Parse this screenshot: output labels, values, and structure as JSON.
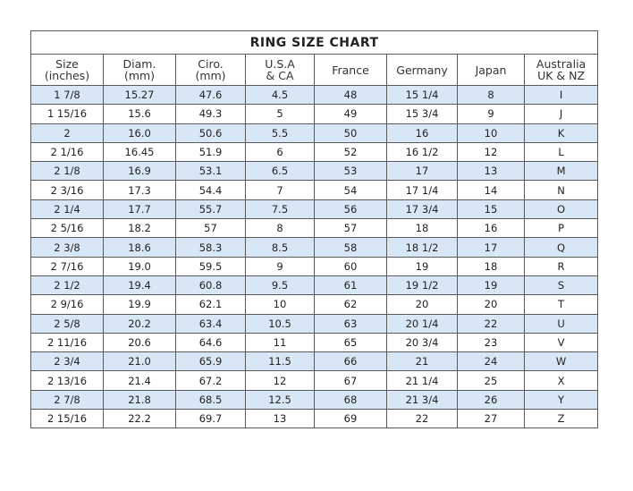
{
  "title": "RING SIZE CHART",
  "columns": [
    [
      "Size",
      "(inches)"
    ],
    [
      "Diam.",
      "(mm)"
    ],
    [
      "Ciro.",
      "(mm)"
    ],
    [
      "U.S.A",
      "& CA"
    ],
    [
      "France",
      ""
    ],
    [
      "Germany",
      ""
    ],
    [
      "Japan",
      ""
    ],
    [
      "Australia",
      "UK & NZ"
    ]
  ],
  "row_color": "#d8e7f6",
  "rows": [
    [
      "1 7/8",
      "15.27",
      "47.6",
      "4.5",
      "48",
      "15 1/4",
      "8",
      "I"
    ],
    [
      "1 15/16",
      "15.6",
      "49.3",
      "5",
      "49",
      "15 3/4",
      "9",
      "J"
    ],
    [
      "2",
      "16.0",
      "50.6",
      "5.5",
      "50",
      "16",
      "10",
      "K"
    ],
    [
      "2 1/16",
      "16.45",
      "51.9",
      "6",
      "52",
      "16 1/2",
      "12",
      "L"
    ],
    [
      "2 1/8",
      "16.9",
      "53.1",
      "6.5",
      "53",
      "17",
      "13",
      "M"
    ],
    [
      "2 3/16",
      "17.3",
      "54.4",
      "7",
      "54",
      "17 1/4",
      "14",
      "N"
    ],
    [
      "2 1/4",
      "17.7",
      "55.7",
      "7.5",
      "56",
      "17 3/4",
      "15",
      "O"
    ],
    [
      "2 5/16",
      "18.2",
      "57",
      "8",
      "57",
      "18",
      "16",
      "P"
    ],
    [
      "2 3/8",
      "18.6",
      "58.3",
      "8.5",
      "58",
      "18 1/2",
      "17",
      "Q"
    ],
    [
      "2 7/16",
      "19.0",
      "59.5",
      "9",
      "60",
      "19",
      "18",
      "R"
    ],
    [
      "2 1/2",
      "19.4",
      "60.8",
      "9.5",
      "61",
      "19 1/2",
      "19",
      "S"
    ],
    [
      "2 9/16",
      "19.9",
      "62.1",
      "10",
      "62",
      "20",
      "20",
      "T"
    ],
    [
      "2 5/8",
      "20.2",
      "63.4",
      "10.5",
      "63",
      "20 1/4",
      "22",
      "U"
    ],
    [
      "2 11/16",
      "20.6",
      "64.6",
      "11",
      "65",
      "20 3/4",
      "23",
      "V"
    ],
    [
      "2 3/4",
      "21.0",
      "65.9",
      "11.5",
      "66",
      "21",
      "24",
      "W"
    ],
    [
      "2 13/16",
      "21.4",
      "67.2",
      "12",
      "67",
      "21 1/4",
      "25",
      "X"
    ],
    [
      "2 7/8",
      "21.8",
      "68.5",
      "12.5",
      "68",
      "21 3/4",
      "26",
      "Y"
    ],
    [
      "2 15/16",
      "22.2",
      "69.7",
      "13",
      "69",
      "22",
      "27",
      "Z"
    ]
  ]
}
